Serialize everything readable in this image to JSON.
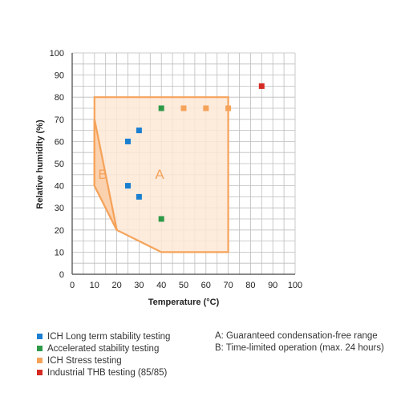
{
  "chart_data": {
    "type": "scatter",
    "xlabel": "Temperature (°C)",
    "ylabel": "Relative humidity (%)",
    "xlim": [
      0,
      100
    ],
    "ylim": [
      0,
      100
    ],
    "x_ticks": [
      "0",
      "10",
      "20",
      "30",
      "40",
      "50",
      "60",
      "70",
      "80",
      "90",
      "100"
    ],
    "y_ticks": [
      "0",
      "10",
      "20",
      "30",
      "40",
      "50",
      "60",
      "70",
      "80",
      "90",
      "100"
    ],
    "grid": true,
    "regions": [
      {
        "label": "A",
        "description": "Guaranteed condensation-free range",
        "polygon": [
          [
            10,
            80
          ],
          [
            70,
            80
          ],
          [
            70,
            10
          ],
          [
            40,
            10
          ],
          [
            20,
            20
          ],
          [
            10,
            40
          ]
        ]
      },
      {
        "label": "B",
        "description": "Time-limited operation (max. 24 hours)",
        "polygon": [
          [
            10,
            70
          ],
          [
            20,
            20
          ],
          [
            10,
            40
          ]
        ]
      }
    ],
    "series": [
      {
        "name": "ICH Long term stability testing",
        "color": "#1a7fd0",
        "points": [
          [
            25,
            60
          ],
          [
            30,
            65
          ],
          [
            25,
            40
          ],
          [
            30,
            35
          ]
        ]
      },
      {
        "name": "Accelerated stability testing",
        "color": "#2e9a48",
        "points": [
          [
            40,
            75
          ],
          [
            40,
            25
          ]
        ]
      },
      {
        "name": "ICH Stress testing",
        "color": "#f5a35a",
        "points": [
          [
            50,
            75
          ],
          [
            60,
            75
          ],
          [
            70,
            75
          ]
        ]
      },
      {
        "name": "Industrial THB testing (85/85)",
        "color": "#d42a22",
        "points": [
          [
            85,
            85
          ]
        ]
      }
    ],
    "notes": [
      "A: Guaranteed condensation-free range",
      "B: Time-limited operation (max. 24 hours)"
    ]
  },
  "colors": {
    "region_stroke": "#f5a35a",
    "region_fill": "#fde8d6",
    "region_label": "#f5a35a",
    "grid": "#bdbdbd",
    "axis": "#444444"
  }
}
